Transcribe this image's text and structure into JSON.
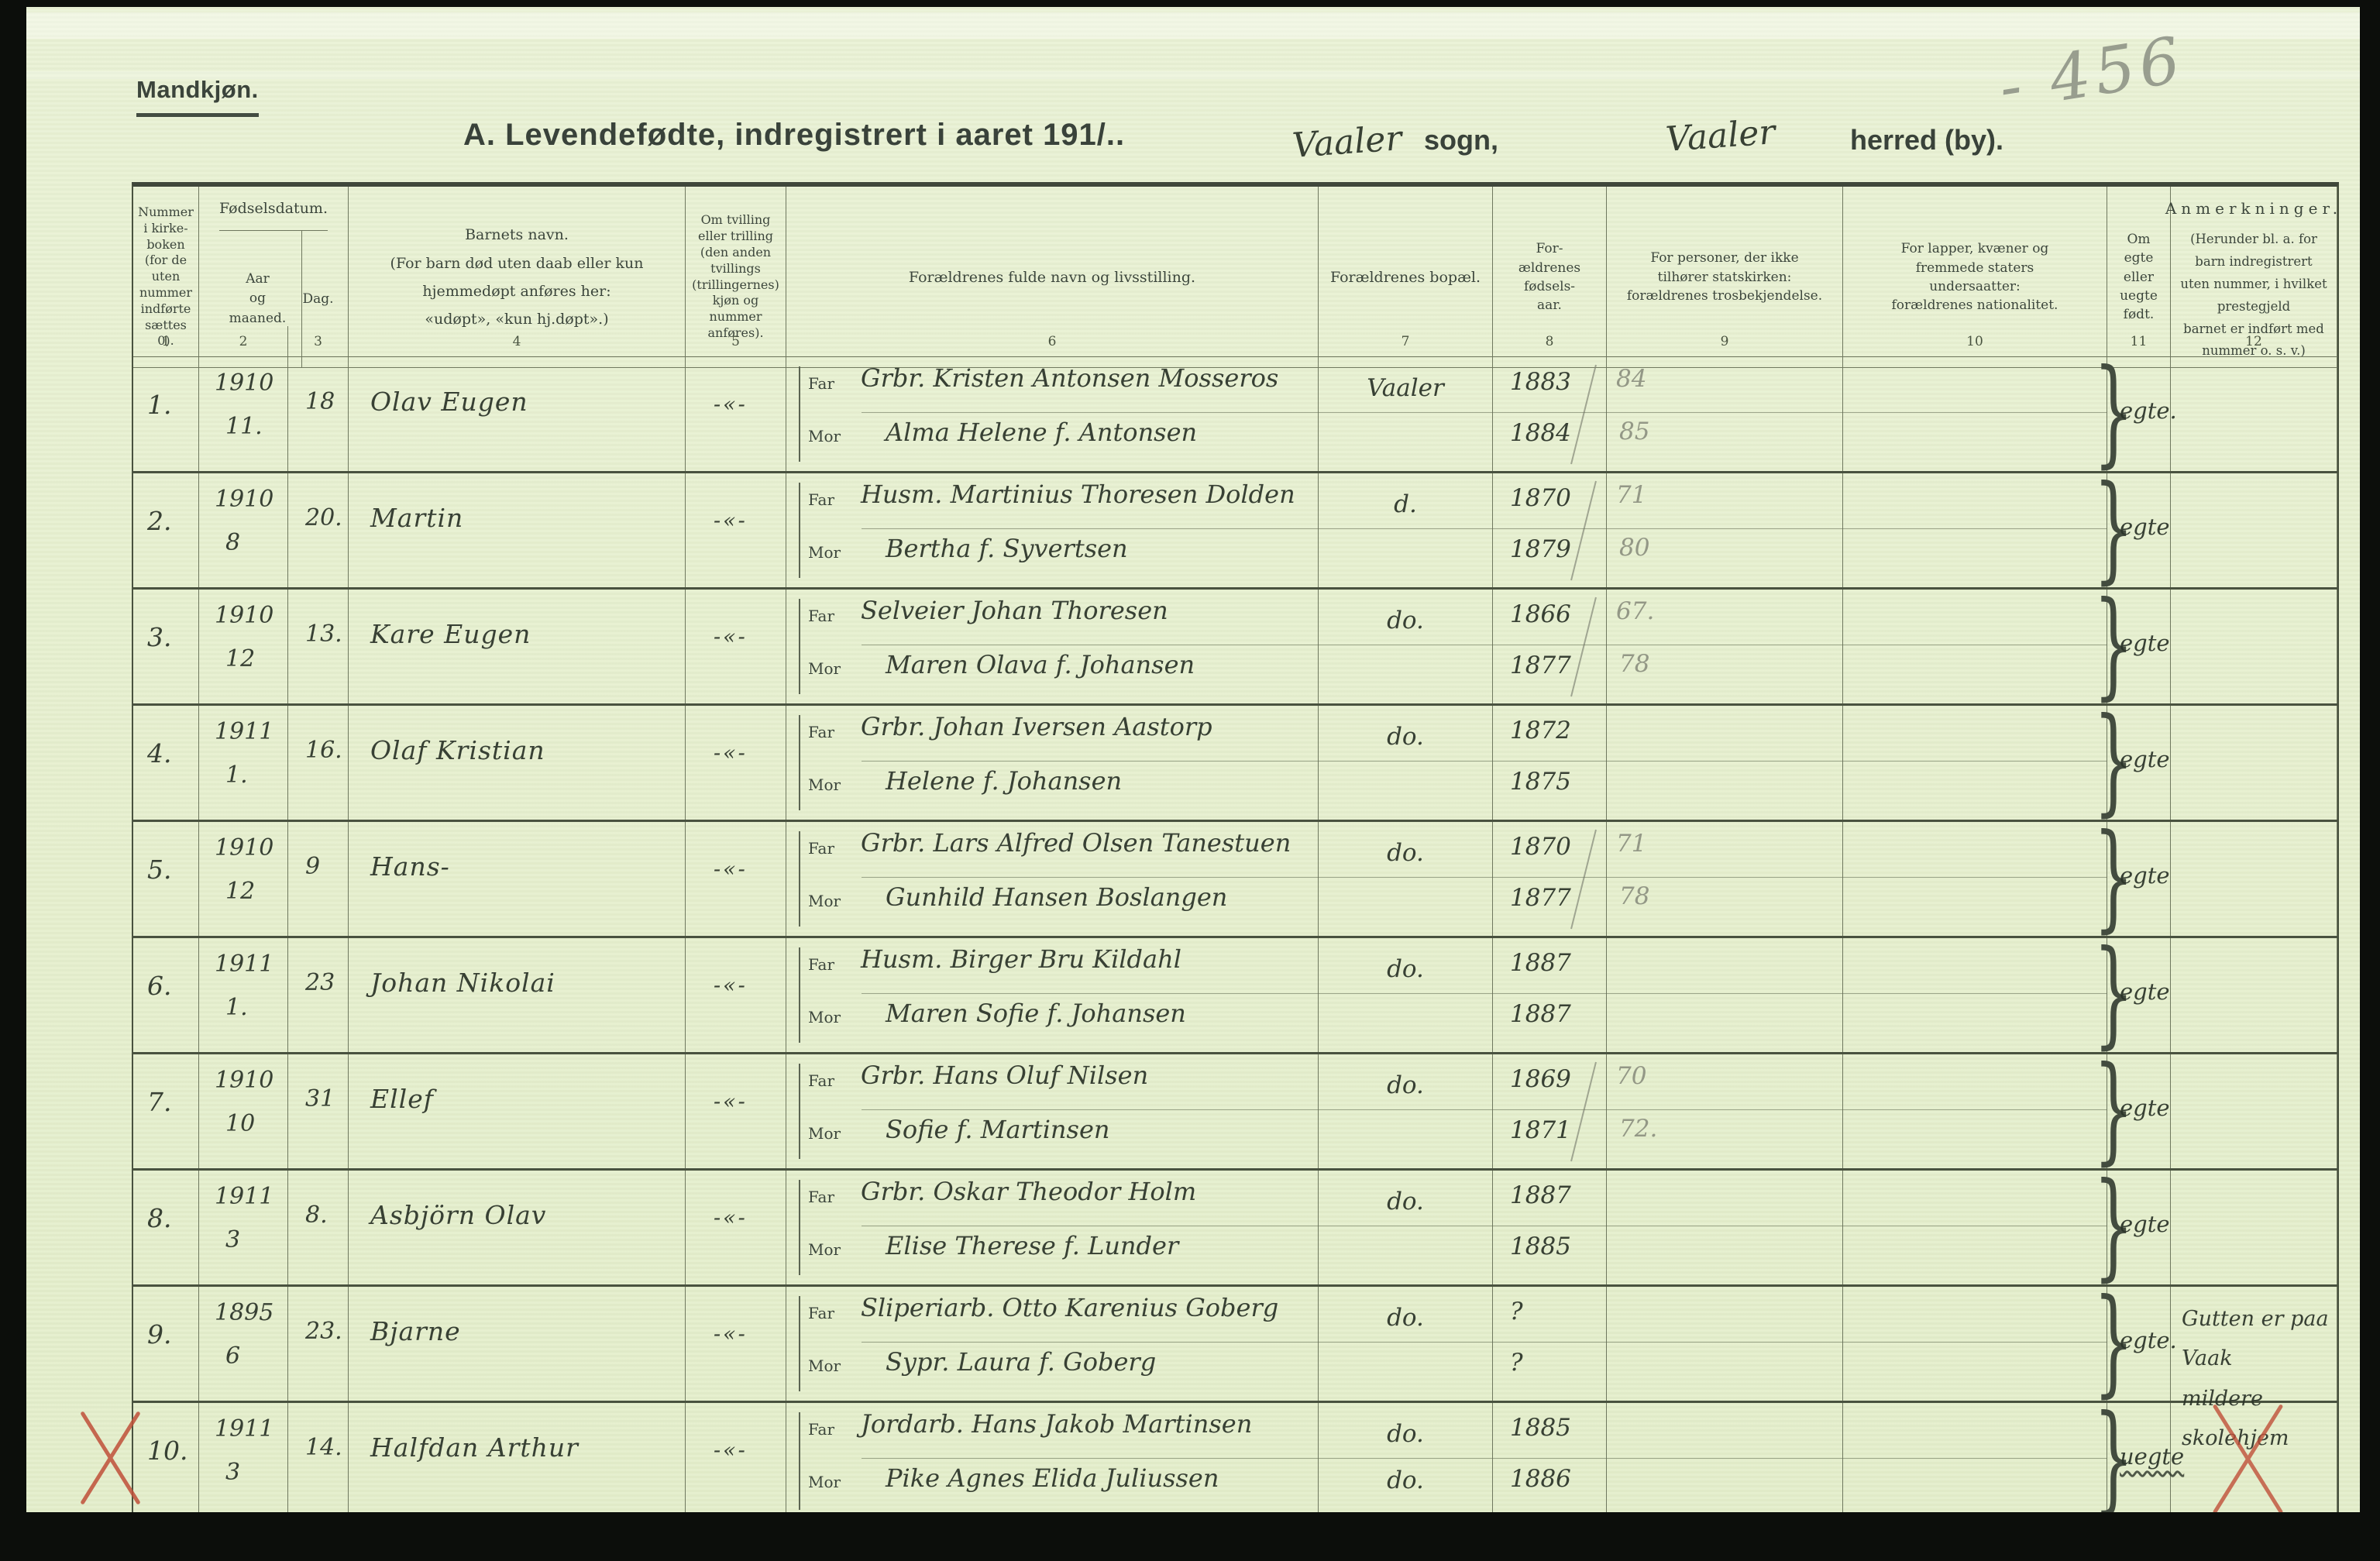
{
  "page": {
    "side_label": "Mandkjøn.",
    "title": "A.  Levendefødte, indregistrert i aaret 191/..",
    "sogn_value": "Vaaler",
    "sogn_label": "sogn,",
    "herred_value": "Vaaler",
    "herred_label": "herred (by).",
    "pencil_number": "- 456"
  },
  "table": {
    "headers": {
      "col1": "Nummer\ni kirke-\nboken\n(for de\nuten\nnummer\nindførte\nsættes\n0).",
      "fodselsdatum": "Fødselsdatum.",
      "aar": "Aar\nog\nmaaned.",
      "dag": "Dag.",
      "col4": "Barnets navn.\n(For barn død uten daab eller kun\nhjemmedøpt anføres her:\n«udøpt», «kun hj.døpt».)",
      "col5": "Om tvilling\neller trilling\n(den anden\ntvillings\n(trillingernes)\nkjøn og\nnummer\nanføres).",
      "col6": "Forældrenes fulde navn og livsstilling.",
      "col7": "Forældrenes bopæl.",
      "col8": "For-\nældrenes\nfødsels-\naar.",
      "col9": "For personer, der ikke\ntilhører statskirken:\nforældrenes trosbekjendelse.",
      "col10": "For lapper, kvæner og\nfremmede staters\nundersaatter:\nforældrenes nationalitet.",
      "col11": "Om\negte\neller\nuegte\nfødt.",
      "col12_title": "Anmerkninger.",
      "col12_body": "(Herunder bl. a. for barn indregistrert\nuten nummer, i hvilket prestegjeld\nbarnet er indført med nummer o. s. v.)"
    },
    "far_label": "Far",
    "mor_label": "Mor",
    "column_numbers": [
      "1",
      "2",
      "3",
      "4",
      "5",
      "6",
      "7",
      "8",
      "9",
      "10",
      "11",
      "12"
    ],
    "brace_glyph": "}",
    "rows": [
      {
        "nr": "1.",
        "aar": "1910",
        "mnd": "11.",
        "dag": "18",
        "navn": "Olav Eugen",
        "tv": "-«-",
        "far": "Grbr. Kristen Antonsen Mosseros",
        "mor": "Alma Helene f. Antonsen",
        "bopel": "Vaaler",
        "bopel_mor": "",
        "faar": "1883",
        "maar": "1884",
        "fp": "84",
        "mp": "85",
        "egte": "egte.",
        "anm": ""
      },
      {
        "nr": "2.",
        "aar": "1910",
        "mnd": "8",
        "dag": "20.",
        "navn": "Martin",
        "tv": "-«-",
        "far": "Husm. Martinius Thoresen Dolden",
        "mor": "Bertha f. Syvertsen",
        "bopel": "d.",
        "bopel_mor": "",
        "faar": "1870",
        "maar": "1879",
        "fp": "71",
        "mp": "80",
        "egte": "egte",
        "anm": ""
      },
      {
        "nr": "3.",
        "aar": "1910",
        "mnd": "12",
        "dag": "13.",
        "navn": "Kare Eugen",
        "tv": "-«-",
        "far": "Selveier Johan Thoresen",
        "mor": "Maren Olava f. Johansen",
        "bopel": "do.",
        "bopel_mor": "",
        "faar": "1866",
        "maar": "1877",
        "fp": "67.",
        "mp": "78",
        "egte": "egte",
        "anm": ""
      },
      {
        "nr": "4.",
        "aar": "1911",
        "mnd": "1.",
        "dag": "16.",
        "navn": "Olaf Kristian",
        "tv": "-«-",
        "far": "Grbr. Johan Iversen Aastorp",
        "mor": "Helene f. Johansen",
        "bopel": "do.",
        "bopel_mor": "",
        "faar": "1872",
        "maar": "1875",
        "fp": "",
        "mp": "",
        "egte": "egte",
        "anm": ""
      },
      {
        "nr": "5.",
        "aar": "1910",
        "mnd": "12",
        "dag": "9",
        "navn": "Hans-",
        "tv": "-«-",
        "far": "Grbr. Lars Alfred Olsen Tanestuen",
        "mor": "Gunhild Hansen Boslangen",
        "bopel": "do.",
        "bopel_mor": "",
        "faar": "1870",
        "maar": "1877",
        "fp": "71",
        "mp": "78",
        "egte": "egte",
        "anm": ""
      },
      {
        "nr": "6.",
        "aar": "1911",
        "mnd": "1.",
        "dag": "23",
        "navn": "Johan Nikolai",
        "tv": "-«-",
        "far": "Husm. Birger Bru Kildahl",
        "mor": "Maren Sofie f. Johansen",
        "bopel": "do.",
        "bopel_mor": "",
        "faar": "1887",
        "maar": "1887",
        "fp": "",
        "mp": "",
        "egte": "egte",
        "anm": ""
      },
      {
        "nr": "7.",
        "aar": "1910",
        "mnd": "10",
        "dag": "31",
        "navn": "Ellef",
        "tv": "-«-",
        "far": "Grbr. Hans Oluf Nilsen",
        "mor": "Sofie f. Martinsen",
        "bopel": "do.",
        "bopel_mor": "",
        "faar": "1869",
        "maar": "1871",
        "fp": "70",
        "mp": "72.",
        "egte": "egte",
        "anm": ""
      },
      {
        "nr": "8.",
        "aar": "1911",
        "mnd": "3",
        "dag": "8.",
        "navn": "Asbjörn Olav",
        "tv": "-«-",
        "far": "Grbr. Oskar Theodor Holm",
        "mor": "Elise Therese f. Lunder",
        "bopel": "do.",
        "bopel_mor": "",
        "faar": "1887",
        "maar": "1885",
        "fp": "",
        "mp": "",
        "egte": "egte",
        "anm": ""
      },
      {
        "nr": "9.",
        "aar": "1895",
        "mnd": "6",
        "dag": "23.",
        "navn": "Bjarne",
        "tv": "-«-",
        "far": "Sliperiarb. Otto Karenius Goberg",
        "mor": "Sypr. Laura f. Goberg",
        "bopel": "do.",
        "bopel_mor": "",
        "faar": "?",
        "maar": "?",
        "fp": "",
        "mp": "",
        "egte": "egte.",
        "anm": "Gutten er paa Vaak\nmildere skolehjem"
      },
      {
        "nr": "10.",
        "aar": "1911",
        "mnd": "3",
        "dag": "14.",
        "navn": "Halfdan Arthur",
        "tv": "-«-",
        "far": "Jordarb. Hans Jakob Martinsen",
        "mor": "Pike Agnes Elida Juliussen",
        "bopel": "do.",
        "bopel_mor": "do.",
        "faar": "1885",
        "maar": "1886",
        "fp": "",
        "mp": "",
        "egte": "uegte",
        "anm": "",
        "red_x": true
      }
    ]
  }
}
